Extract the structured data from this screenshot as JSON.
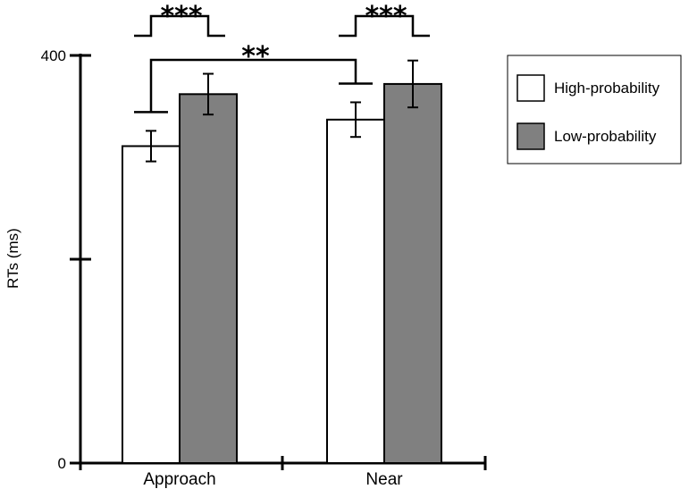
{
  "chart_data": {
    "type": "bar",
    "categories": [
      "Approach",
      "Near"
    ],
    "series": [
      {
        "name": "High-probability",
        "values": [
          311,
          337
        ],
        "errors": [
          15,
          17
        ],
        "color": "#ffffff"
      },
      {
        "name": "Low-probability",
        "values": [
          362,
          372
        ],
        "errors": [
          20,
          23
        ],
        "color": "#808080"
      }
    ],
    "ylabel": "RTs (ms)",
    "ylim": [
      0,
      400
    ],
    "yticks": [
      "0",
      "400"
    ],
    "ytick_values": [
      0,
      200,
      400
    ],
    "grid": false,
    "legend_position": "top-right",
    "significance": [
      {
        "between": [
          "Approach High-probability",
          "Approach Low-probability"
        ],
        "label": "***"
      },
      {
        "between": [
          "Near High-probability",
          "Near Low-probability"
        ],
        "label": "***"
      },
      {
        "between": [
          "Approach High-probability",
          "Near High-probability"
        ],
        "label": "**"
      }
    ]
  }
}
